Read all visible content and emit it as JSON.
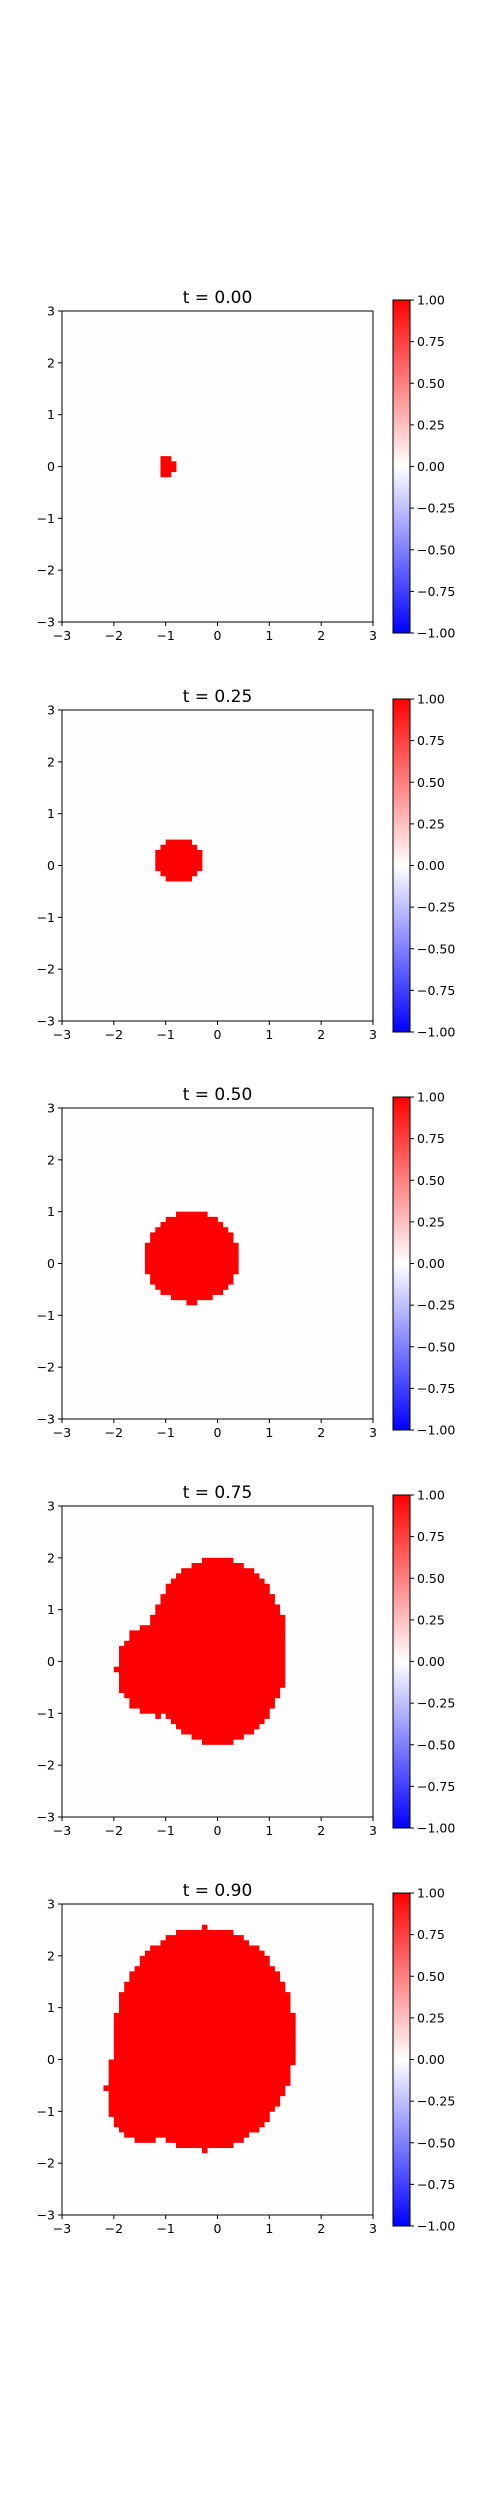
{
  "chart_data": [
    {
      "type": "heatmap",
      "title": "t = 0.00",
      "xlim": [
        -3,
        3
      ],
      "ylim": [
        -3,
        3
      ],
      "xticks": [
        "−3",
        "−2",
        "−1",
        "0",
        "1",
        "2",
        "3"
      ],
      "yticks": [
        "−3",
        "−2",
        "−1",
        "0",
        "1",
        "2",
        "3"
      ],
      "field_value": 1.0,
      "background_value": 0.0,
      "region": {
        "shape": "blob",
        "center": [
          -0.98,
          0.0
        ],
        "rx": 0.16,
        "ry": 0.2,
        "lobes": []
      },
      "colorbar": {
        "min": -1.0,
        "max": 1.0,
        "cmap": "bwr",
        "ticks": [
          "1.00",
          "0.75",
          "0.50",
          "0.25",
          "0.00",
          "−0.25",
          "−0.50",
          "−0.75",
          "−1.00"
        ]
      }
    },
    {
      "type": "heatmap",
      "title": "t = 0.25",
      "xlim": [
        -3,
        3
      ],
      "ylim": [
        -3,
        3
      ],
      "xticks": [
        "−3",
        "−2",
        "−1",
        "0",
        "1",
        "2",
        "3"
      ],
      "yticks": [
        "−3",
        "−2",
        "−1",
        "0",
        "1",
        "2",
        "3"
      ],
      "field_value": 1.0,
      "background_value": 0.0,
      "region": {
        "shape": "blob",
        "center": [
          -0.75,
          0.1
        ],
        "rx": 0.45,
        "ry": 0.42,
        "lobes": []
      },
      "colorbar": {
        "min": -1.0,
        "max": 1.0,
        "cmap": "bwr",
        "ticks": [
          "1.00",
          "0.75",
          "0.50",
          "0.25",
          "0.00",
          "−0.25",
          "−0.50",
          "−0.75",
          "−1.00"
        ]
      }
    },
    {
      "type": "heatmap",
      "title": "t = 0.50",
      "xlim": [
        -3,
        3
      ],
      "ylim": [
        -3,
        3
      ],
      "xticks": [
        "−3",
        "−2",
        "−1",
        "0",
        "1",
        "2",
        "3"
      ],
      "yticks": [
        "−3",
        "−2",
        "−1",
        "0",
        "1",
        "2",
        "3"
      ],
      "field_value": 1.0,
      "background_value": 0.0,
      "region": {
        "shape": "blob",
        "center": [
          -0.5,
          0.12
        ],
        "rx": 0.9,
        "ry": 0.88,
        "lobes": []
      },
      "colorbar": {
        "min": -1.0,
        "max": 1.0,
        "cmap": "bwr",
        "ticks": [
          "1.00",
          "0.75",
          "0.50",
          "0.25",
          "0.00",
          "−0.25",
          "−0.50",
          "−0.75",
          "−1.00"
        ]
      }
    },
    {
      "type": "heatmap",
      "title": "t = 0.75",
      "xlim": [
        -3,
        3
      ],
      "ylim": [
        -3,
        3
      ],
      "xticks": [
        "−3",
        "−2",
        "−1",
        "0",
        "1",
        "2",
        "3"
      ],
      "yticks": [
        "−3",
        "−2",
        "−1",
        "0",
        "1",
        "2",
        "3"
      ],
      "field_value": 1.0,
      "background_value": 0.0,
      "region": {
        "shape": "blob",
        "center": [
          0.0,
          0.2
        ],
        "rx": 1.35,
        "ry": 1.8,
        "lobes": [
          {
            "center": [
              -1.15,
              -0.15
            ],
            "rx": 0.8,
            "ry": 0.9
          }
        ]
      },
      "colorbar": {
        "min": -1.0,
        "max": 1.0,
        "cmap": "bwr",
        "ticks": [
          "1.00",
          "0.75",
          "0.50",
          "0.25",
          "0.00",
          "−0.25",
          "−0.50",
          "−0.75",
          "−1.00"
        ]
      }
    },
    {
      "type": "heatmap",
      "title": "t = 0.90",
      "xlim": [
        -3,
        3
      ],
      "ylim": [
        -3,
        3
      ],
      "xticks": [
        "−3",
        "−2",
        "−1",
        "0",
        "1",
        "2",
        "3"
      ],
      "yticks": [
        "−3",
        "−2",
        "−1",
        "0",
        "1",
        "2",
        "3"
      ],
      "field_value": 1.0,
      "background_value": 0.0,
      "region": {
        "shape": "blob",
        "center": [
          -0.25,
          0.4
        ],
        "rx": 1.75,
        "ry": 2.15,
        "lobes": [
          {
            "center": [
              -1.4,
              -0.55
            ],
            "rx": 0.75,
            "ry": 1.05
          }
        ]
      },
      "colorbar": {
        "min": -1.0,
        "max": 1.0,
        "cmap": "bwr",
        "ticks": [
          "1.00",
          "0.75",
          "0.50",
          "0.25",
          "0.00",
          "−0.25",
          "−0.50",
          "−0.75",
          "−1.00"
        ]
      }
    }
  ],
  "colors": {
    "positive": "#ff0000",
    "background": "#fefefe",
    "cmap_low": "#0000ff",
    "cmap_mid": "#ffffff",
    "cmap_high": "#ff0000",
    "axis": "#000000"
  }
}
